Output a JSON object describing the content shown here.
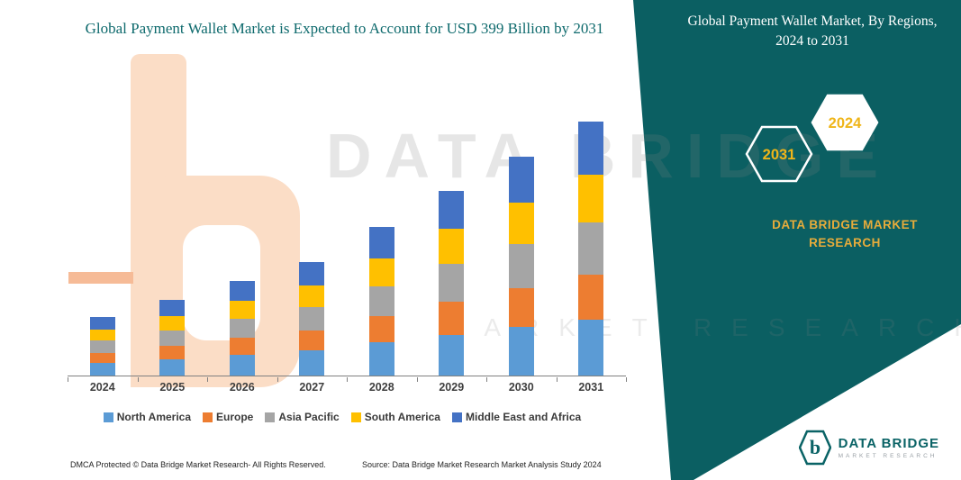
{
  "header": {
    "left_title": "Global Payment Wallet Market is Expected to Account for USD 399 Billion by 2031",
    "right_title": "Global Payment Wallet Market, By Regions, 2024 to 2031"
  },
  "badges": {
    "back": "2031",
    "front": "2024"
  },
  "brand": {
    "panel_name": "DATA BRIDGE MARKET RESEARCH"
  },
  "watermark": {
    "line1": "DATA BRIDGE",
    "line2": "MARKET RESEARCH"
  },
  "chart_data": {
    "type": "bar",
    "stacked": true,
    "title": "Global Payment Wallet Market is Expected to Account for USD 399 Billion by 2031",
    "unit": "USD Billion",
    "categories": [
      "2024",
      "2025",
      "2026",
      "2027",
      "2028",
      "2029",
      "2030",
      "2031"
    ],
    "series": [
      {
        "name": "North America",
        "color": "#5B9BD5",
        "values": [
          20,
          26,
          33,
          39,
          52,
          64,
          76,
          88
        ]
      },
      {
        "name": "Europe",
        "color": "#ED7D31",
        "values": [
          16,
          21,
          26,
          32,
          41,
          52,
          61,
          71
        ]
      },
      {
        "name": "Asia Pacific",
        "color": "#A5A5A5",
        "values": [
          19,
          24,
          30,
          36,
          47,
          59,
          70,
          81
        ]
      },
      {
        "name": "South America",
        "color": "#FFC000",
        "values": [
          17,
          23,
          28,
          34,
          44,
          55,
          65,
          75
        ]
      },
      {
        "name": "Middle East and Africa",
        "color": "#4472C4",
        "values": [
          20,
          25,
          31,
          37,
          49,
          60,
          72,
          84
        ]
      }
    ],
    "totals": [
      92,
      119,
      148,
      178,
      233,
      290,
      344,
      399
    ],
    "ylim": [
      0,
      399
    ],
    "grid": false,
    "legend_position": "bottom"
  },
  "footer": {
    "dmca": "DMCA Protected © Data Bridge Market Research-  All Rights Reserved.",
    "source": "Source: Data Bridge Market Research  Market Analysis Study 2024"
  },
  "logo": {
    "name": "DATA BRIDGE",
    "tagline": "MARKET RESEARCH"
  }
}
